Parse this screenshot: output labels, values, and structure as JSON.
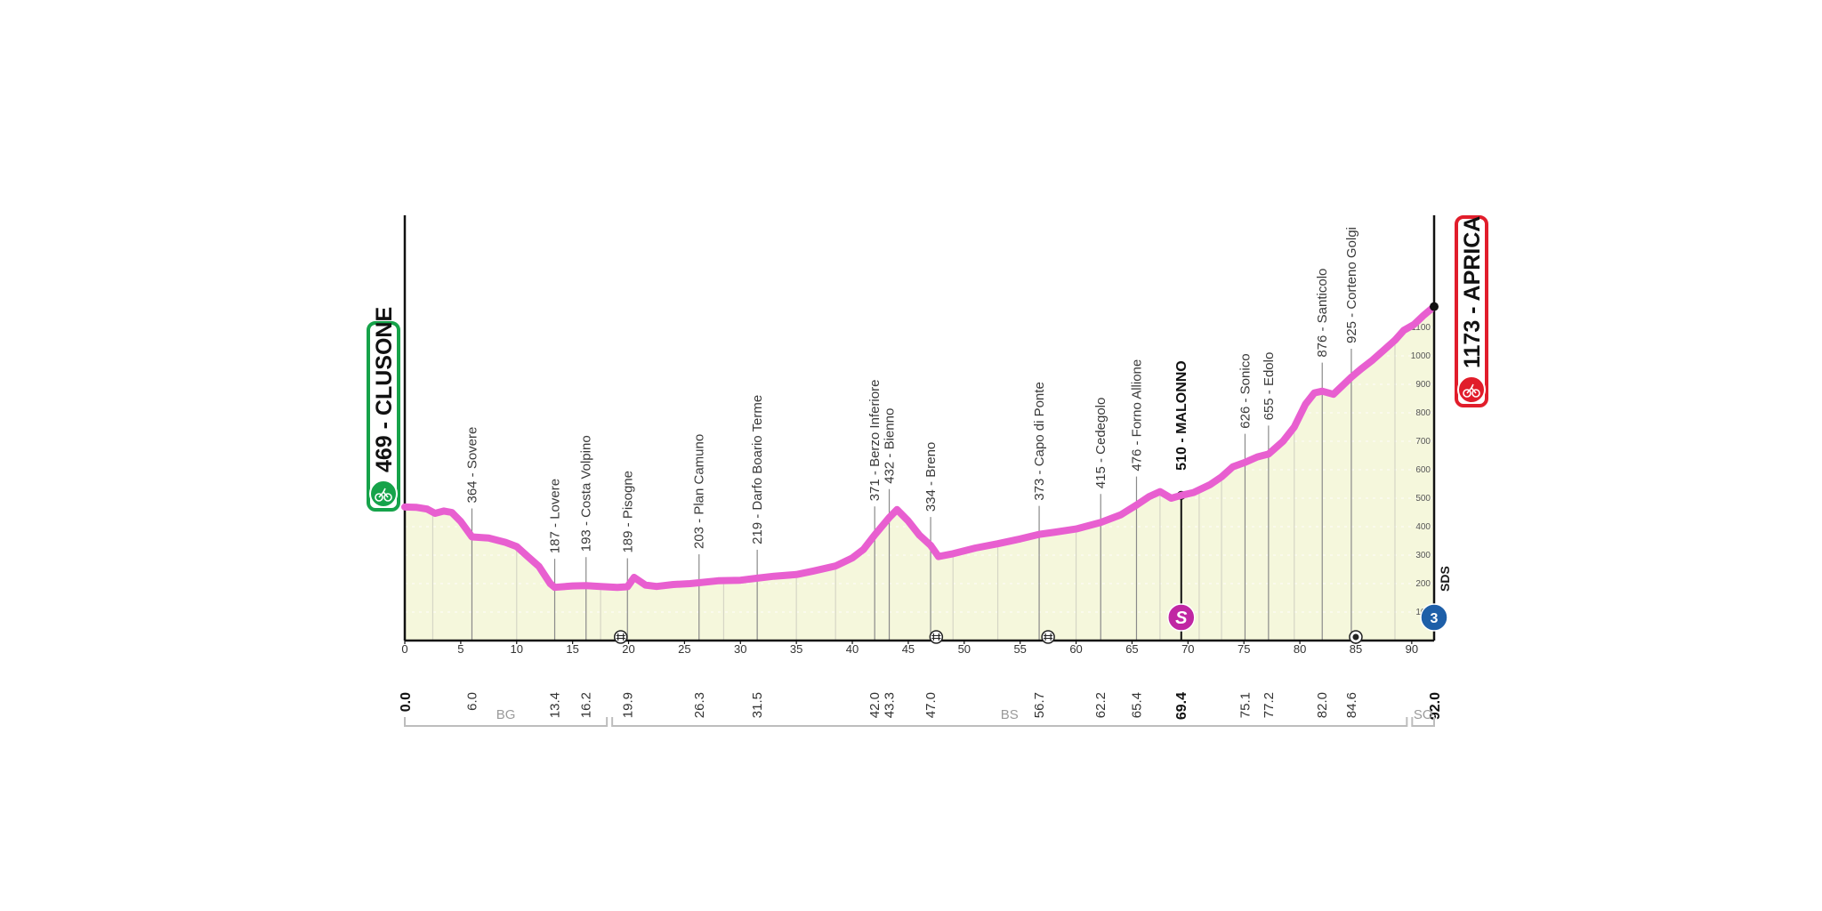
{
  "chart_data": {
    "type": "area",
    "stage_start": {
      "altitude": "469",
      "name": "CLUSONE"
    },
    "stage_finish": {
      "altitude": "1173",
      "name": "APRICA"
    },
    "x_axis": {
      "min": 0,
      "max": 92,
      "ticks": [
        "0",
        "5",
        "10",
        "15",
        "20",
        "25",
        "30",
        "35",
        "40",
        "45",
        "50",
        "55",
        "60",
        "65",
        "70",
        "75",
        "80",
        "85",
        "90"
      ]
    },
    "y_axis": {
      "min": 0,
      "max": 1200,
      "ticks": [
        "100",
        "200",
        "300",
        "400",
        "500",
        "600",
        "700",
        "800",
        "900",
        "1000",
        "1100"
      ]
    },
    "profile": [
      [
        0,
        469
      ],
      [
        1,
        468
      ],
      [
        2,
        462
      ],
      [
        2.7,
        447
      ],
      [
        3.5,
        455
      ],
      [
        4.2,
        450
      ],
      [
        5,
        418
      ],
      [
        6,
        364
      ],
      [
        7.5,
        360
      ],
      [
        9,
        345
      ],
      [
        10,
        330
      ],
      [
        11,
        295
      ],
      [
        12,
        260
      ],
      [
        13,
        200
      ],
      [
        13.4,
        187
      ],
      [
        15,
        192
      ],
      [
        16.2,
        193
      ],
      [
        17.5,
        190
      ],
      [
        19,
        187
      ],
      [
        19.9,
        189
      ],
      [
        20.5,
        222
      ],
      [
        21.5,
        195
      ],
      [
        22.5,
        190
      ],
      [
        24,
        197
      ],
      [
        25.5,
        200
      ],
      [
        26.3,
        203
      ],
      [
        28,
        210
      ],
      [
        30,
        212
      ],
      [
        31.5,
        219
      ],
      [
        33,
        226
      ],
      [
        35,
        232
      ],
      [
        36.5,
        244
      ],
      [
        38.5,
        262
      ],
      [
        40,
        290
      ],
      [
        41,
        320
      ],
      [
        42,
        371
      ],
      [
        43.3,
        432
      ],
      [
        44,
        460
      ],
      [
        45,
        420
      ],
      [
        46,
        370
      ],
      [
        47,
        334
      ],
      [
        47.7,
        295
      ],
      [
        49,
        305
      ],
      [
        51,
        325
      ],
      [
        53,
        340
      ],
      [
        55,
        357
      ],
      [
        56.7,
        373
      ],
      [
        58,
        380
      ],
      [
        60,
        392
      ],
      [
        62.2,
        415
      ],
      [
        64,
        442
      ],
      [
        65.4,
        476
      ],
      [
        66.5,
        505
      ],
      [
        67.5,
        523
      ],
      [
        68.5,
        500
      ],
      [
        69.4,
        510
      ],
      [
        70.5,
        520
      ],
      [
        72,
        548
      ],
      [
        73,
        575
      ],
      [
        74,
        610
      ],
      [
        75.1,
        626
      ],
      [
        76.2,
        645
      ],
      [
        77.2,
        655
      ],
      [
        78.5,
        700
      ],
      [
        79.5,
        750
      ],
      [
        80.5,
        830
      ],
      [
        81.3,
        870
      ],
      [
        82,
        876
      ],
      [
        83,
        865
      ],
      [
        84.6,
        925
      ],
      [
        85.5,
        955
      ],
      [
        86.5,
        985
      ],
      [
        87.5,
        1020
      ],
      [
        88.5,
        1055
      ],
      [
        89.3,
        1090
      ],
      [
        90.2,
        1110
      ],
      [
        91,
        1140
      ],
      [
        92,
        1173
      ]
    ],
    "waypoints": [
      {
        "km": 6.0,
        "km_label": "6.0",
        "label": "364 - Sovere",
        "altitude": 364
      },
      {
        "km": 13.4,
        "km_label": "13.4",
        "label": "187 - Lovere",
        "altitude": 187
      },
      {
        "km": 16.2,
        "km_label": "16.2",
        "label": "193 - Costa Volpino",
        "altitude": 193
      },
      {
        "km": 19.9,
        "km_label": "19.9",
        "label": "189 - Pisogne",
        "altitude": 189
      },
      {
        "km": 26.3,
        "km_label": "26.3",
        "label": "203 - Plan Camuno",
        "altitude": 203
      },
      {
        "km": 31.5,
        "km_label": "31.5",
        "label": "219 - Darfo Boario Terme",
        "altitude": 219
      },
      {
        "km": 42.0,
        "km_label": "42.0",
        "label": "371 - Berzo Inferiore",
        "altitude": 371
      },
      {
        "km": 43.3,
        "km_label": "43.3",
        "label": "432 - Bienno",
        "altitude": 432
      },
      {
        "km": 47.0,
        "km_label": "47.0",
        "label": "334 - Breno",
        "altitude": 334
      },
      {
        "km": 56.7,
        "km_label": "56.7",
        "label": "373 - Capo di Ponte",
        "altitude": 373
      },
      {
        "km": 62.2,
        "km_label": "62.2",
        "label": "415 - Cedegolo",
        "altitude": 415
      },
      {
        "km": 65.4,
        "km_label": "65.4",
        "label": "476 - Forno Allione",
        "altitude": 476
      },
      {
        "km": 69.4,
        "km_label": "69.4",
        "label": "510 - MALONNO",
        "altitude": 510,
        "highlight": true
      },
      {
        "km": 75.1,
        "km_label": "75.1",
        "label": "626 - Sonico",
        "altitude": 626
      },
      {
        "km": 77.2,
        "km_label": "77.2",
        "label": "655 - Edolo",
        "altitude": 655
      },
      {
        "km": 82.0,
        "km_label": "82.0",
        "label": "876 - Santicolo",
        "altitude": 876
      },
      {
        "km": 84.6,
        "km_label": "84.6",
        "label": "925 - Corteno Golgi",
        "altitude": 925
      }
    ],
    "km_endpoints": [
      {
        "km": 0,
        "label": "0.0"
      },
      {
        "km": 92,
        "label": "92.0"
      }
    ],
    "extra_gridlines_km": [
      2.5,
      10,
      17.5,
      28.5,
      35,
      38.5,
      49,
      53,
      60,
      67.5,
      71,
      73,
      79.5,
      88.5
    ],
    "regions": [
      {
        "label": "BG",
        "from_km": 0,
        "to_km": 18.3
      },
      {
        "label": "BS",
        "from_km": 18.3,
        "to_km": 89.8
      },
      {
        "label": "SO",
        "from_km": 89.8,
        "to_km": 92
      }
    ],
    "markers": {
      "sprint": {
        "km": 69.4,
        "symbol": "S"
      },
      "kom": {
        "km": 92,
        "category": "3",
        "label": "SDS"
      },
      "level_crossings_km": [
        19.3,
        47.5,
        57.5
      ],
      "feed_zone_km": 85
    },
    "colors": {
      "profile_line": "#e85fd0",
      "fill": "#f5f7dc",
      "start_badge": "#16a34a",
      "finish_badge": "#e11d2b",
      "sprint_badge": "#c026a3",
      "kom_badge": "#1e5fa8",
      "axis": "#111111",
      "gridline": "#d6d6c6",
      "region_bracket": "#bdbdbd"
    }
  }
}
